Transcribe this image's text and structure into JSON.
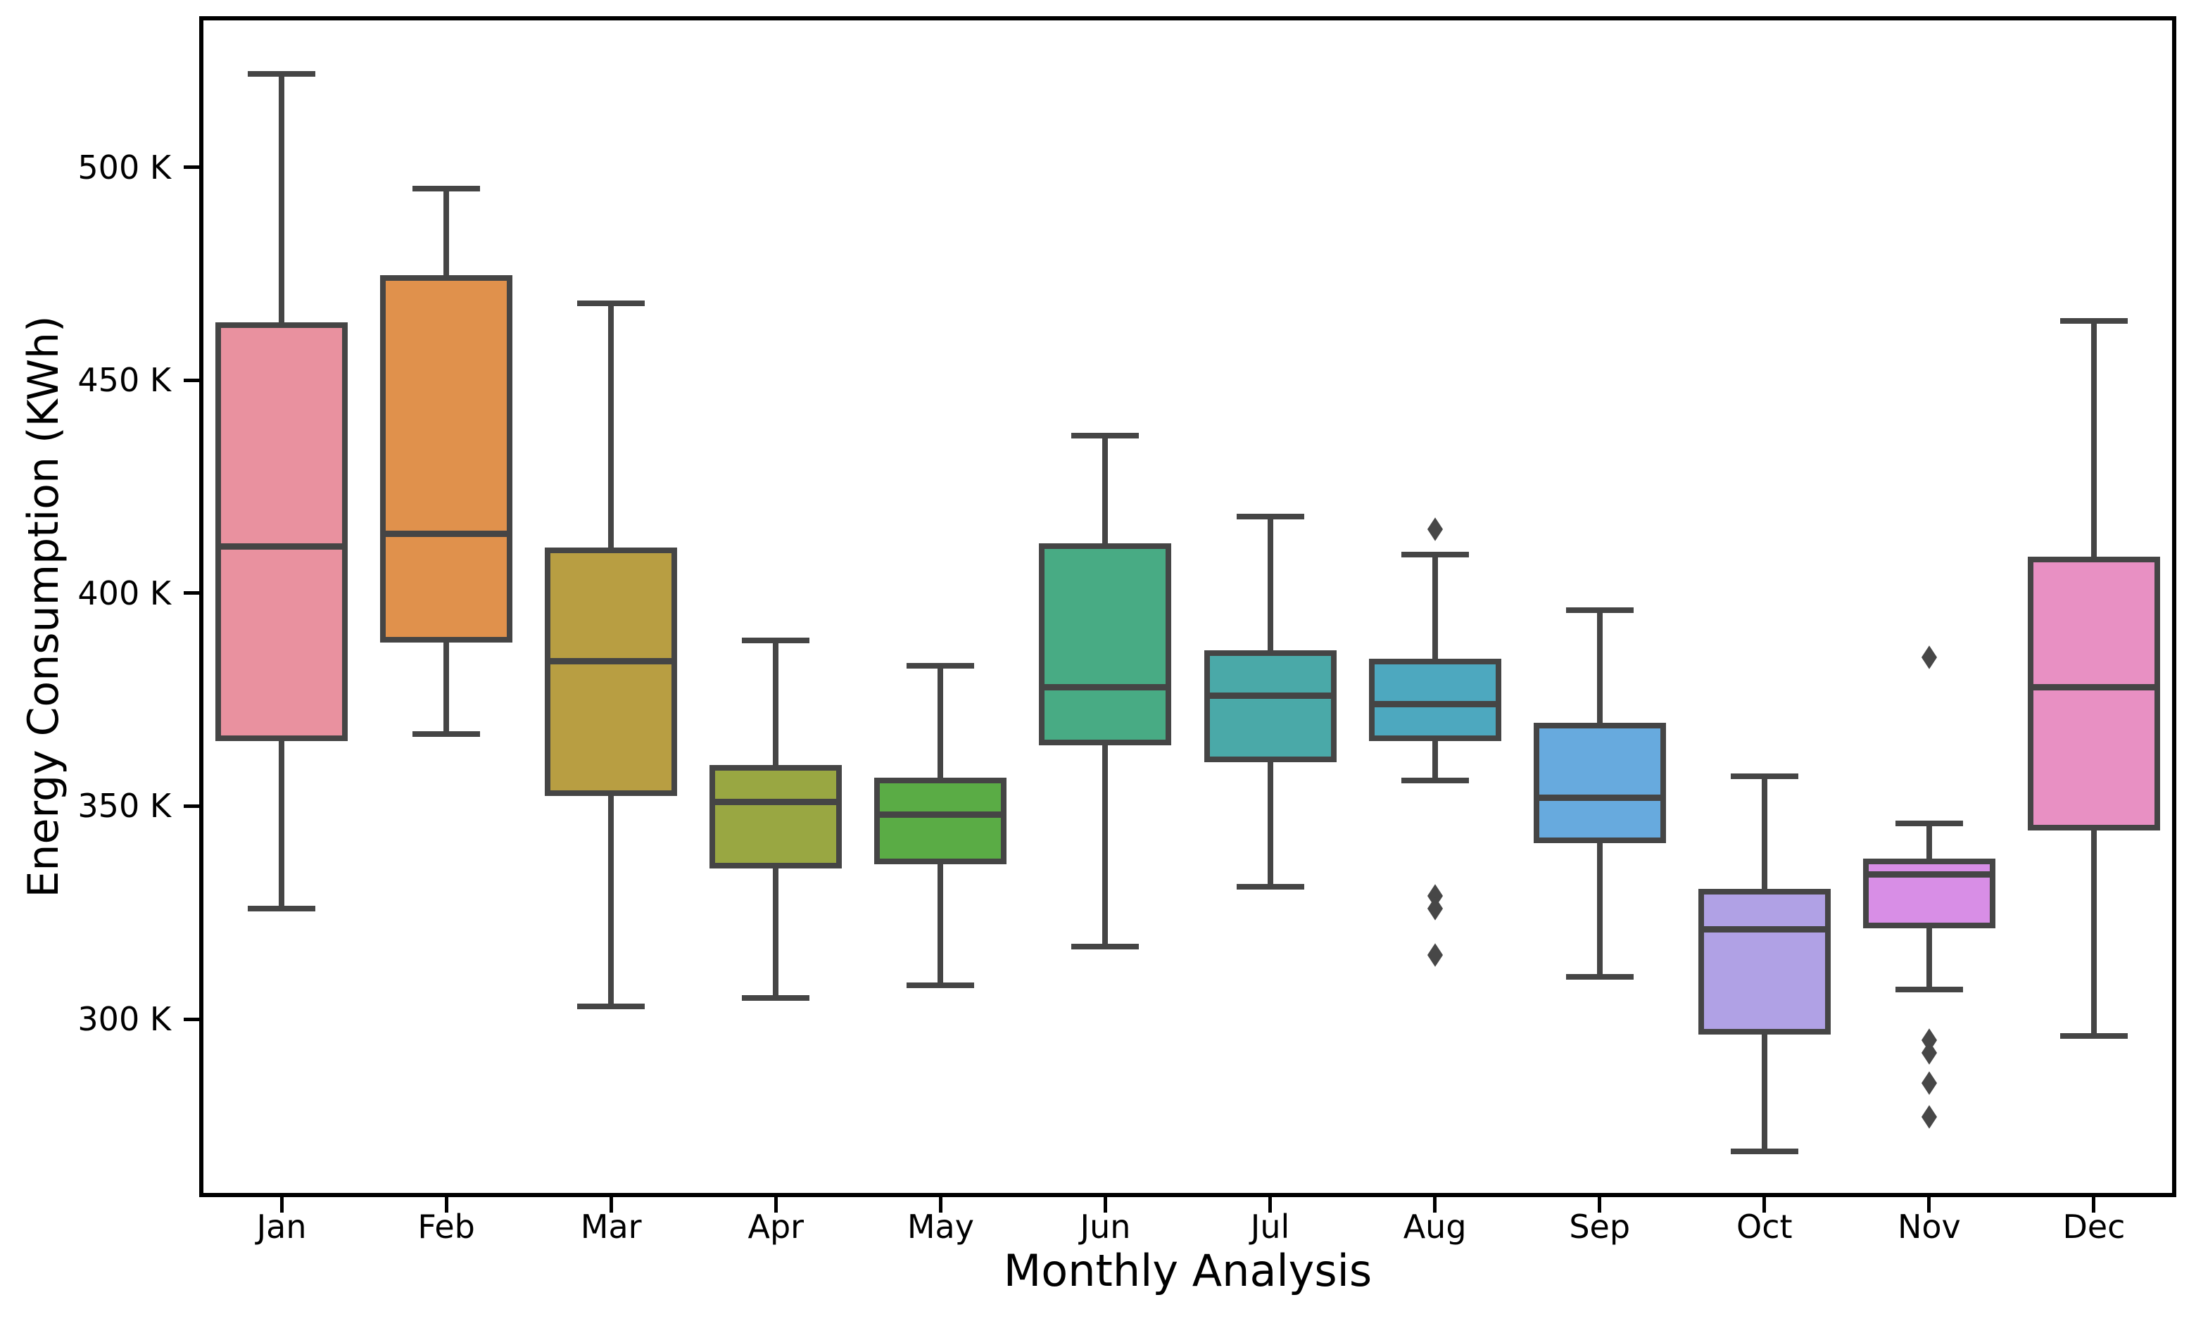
{
  "chart_data": {
    "type": "boxplot",
    "title": "",
    "xlabel": "Monthly Analysis",
    "ylabel": "Energy Consumption (KWh)",
    "ylim": [
      258.2,
      535.5
    ],
    "grid": false,
    "legend": "none",
    "y_ticks": [
      {
        "value": 300,
        "label": "300 K"
      },
      {
        "value": 350,
        "label": "350 K"
      },
      {
        "value": 400,
        "label": "400 K"
      },
      {
        "value": 450,
        "label": "450 K"
      },
      {
        "value": 500,
        "label": "500 K"
      }
    ],
    "categories": [
      "Jan",
      "Feb",
      "Mar",
      "Apr",
      "May",
      "Jun",
      "Jul",
      "Aug",
      "Sep",
      "Oct",
      "Nov",
      "Dec"
    ],
    "unit_note": "values in thousands of KWh (K)",
    "series": [
      {
        "month": "Jan",
        "color": "#e9919f",
        "whisker_low": 326,
        "q1": 366,
        "median": 411,
        "q3": 463,
        "whisker_high": 522,
        "outliers": []
      },
      {
        "month": "Feb",
        "color": "#e0914c",
        "whisker_low": 367,
        "q1": 389,
        "median": 414,
        "q3": 474,
        "whisker_high": 495,
        "outliers": []
      },
      {
        "month": "Mar",
        "color": "#b89e42",
        "whisker_low": 303,
        "q1": 353,
        "median": 384,
        "q3": 410,
        "whisker_high": 468,
        "outliers": []
      },
      {
        "month": "Apr",
        "color": "#99a742",
        "whisker_low": 305,
        "q1": 336,
        "median": 351,
        "q3": 359,
        "whisker_high": 389,
        "outliers": []
      },
      {
        "month": "May",
        "color": "#5aac45",
        "whisker_low": 308,
        "q1": 337,
        "median": 348,
        "q3": 356,
        "whisker_high": 383,
        "outliers": []
      },
      {
        "month": "Jun",
        "color": "#48ab84",
        "whisker_low": 317,
        "q1": 365,
        "median": 378,
        "q3": 411,
        "whisker_high": 437,
        "outliers": []
      },
      {
        "month": "Jul",
        "color": "#4aa9a8",
        "whisker_low": 331,
        "q1": 361,
        "median": 376,
        "q3": 386,
        "whisker_high": 418,
        "outliers": []
      },
      {
        "month": "Aug",
        "color": "#4da8bf",
        "whisker_low": 356,
        "q1": 366,
        "median": 374,
        "q3": 384,
        "whisker_high": 409,
        "outliers": [
          415,
          329,
          326,
          315
        ]
      },
      {
        "month": "Sep",
        "color": "#67aade",
        "whisker_low": 310,
        "q1": 342,
        "median": 352,
        "q3": 369,
        "whisker_high": 396,
        "outliers": []
      },
      {
        "month": "Oct",
        "color": "#b0a1e5",
        "whisker_low": 269,
        "q1": 297,
        "median": 321,
        "q3": 330,
        "whisker_high": 357,
        "outliers": []
      },
      {
        "month": "Nov",
        "color": "#d88ee6",
        "whisker_low": 307,
        "q1": 322,
        "median": 334,
        "q3": 337,
        "whisker_high": 346,
        "outliers": [
          385,
          295,
          292,
          285,
          277
        ]
      },
      {
        "month": "Dec",
        "color": "#e890c3",
        "whisker_low": 296,
        "q1": 345,
        "median": 378,
        "q3": 408,
        "whisker_high": 464,
        "outliers": []
      }
    ],
    "style": {
      "box_line_color": "#454545",
      "spine_color": "#000000",
      "background": "#ffffff"
    }
  }
}
